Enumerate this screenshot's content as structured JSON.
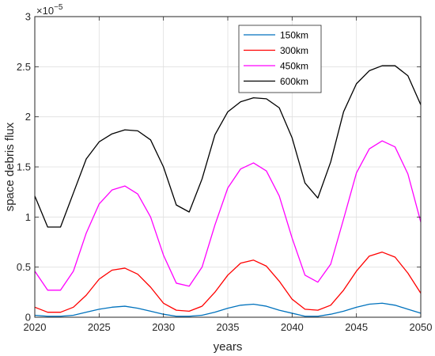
{
  "chart_data": {
    "type": "line",
    "xlabel": "years",
    "ylabel": "space debris flux",
    "y_exponent_label": "×10",
    "y_exponent_power": "−5",
    "xlim": [
      2020,
      2050
    ],
    "ylim": [
      0,
      3
    ],
    "xticks": [
      2020,
      2025,
      2030,
      2035,
      2040,
      2045,
      2050
    ],
    "xtick_labels": [
      "2020",
      "2025",
      "2030",
      "2035",
      "2040",
      "2045",
      "2050"
    ],
    "yticks": [
      0,
      0.5,
      1,
      1.5,
      2,
      2.5,
      3
    ],
    "ytick_labels": [
      "0",
      "0.5",
      "1",
      "1.5",
      "2",
      "2.5",
      "3"
    ],
    "grid": true,
    "legend_position": "top-right",
    "x": [
      2020,
      2021,
      2022,
      2023,
      2024,
      2025,
      2026,
      2027,
      2028,
      2029,
      2030,
      2031,
      2032,
      2033,
      2034,
      2035,
      2036,
      2037,
      2038,
      2039,
      2040,
      2041,
      2042,
      2043,
      2044,
      2045,
      2046,
      2047,
      2048,
      2049,
      2050
    ],
    "series": [
      {
        "name": "150km",
        "color": "#0072BD",
        "values": [
          0.02,
          0.01,
          0.01,
          0.02,
          0.05,
          0.08,
          0.1,
          0.11,
          0.09,
          0.06,
          0.03,
          0.01,
          0.01,
          0.02,
          0.05,
          0.09,
          0.12,
          0.13,
          0.11,
          0.07,
          0.04,
          0.01,
          0.01,
          0.03,
          0.06,
          0.1,
          0.13,
          0.14,
          0.12,
          0.08,
          0.04
        ]
      },
      {
        "name": "300km",
        "color": "#FF0000",
        "values": [
          0.1,
          0.05,
          0.05,
          0.1,
          0.22,
          0.38,
          0.47,
          0.49,
          0.43,
          0.3,
          0.14,
          0.07,
          0.06,
          0.11,
          0.25,
          0.42,
          0.54,
          0.57,
          0.51,
          0.36,
          0.18,
          0.08,
          0.07,
          0.12,
          0.27,
          0.46,
          0.61,
          0.65,
          0.6,
          0.44,
          0.24
        ]
      },
      {
        "name": "450km",
        "color": "#FF00FF",
        "values": [
          0.46,
          0.27,
          0.27,
          0.46,
          0.84,
          1.13,
          1.27,
          1.31,
          1.23,
          1.0,
          0.62,
          0.34,
          0.31,
          0.5,
          0.92,
          1.29,
          1.48,
          1.54,
          1.46,
          1.21,
          0.79,
          0.42,
          0.35,
          0.53,
          0.98,
          1.44,
          1.68,
          1.76,
          1.7,
          1.43,
          0.95
        ]
      },
      {
        "name": "600km",
        "color": "#000000",
        "values": [
          1.21,
          0.9,
          0.9,
          1.24,
          1.58,
          1.75,
          1.83,
          1.87,
          1.86,
          1.77,
          1.5,
          1.12,
          1.05,
          1.38,
          1.82,
          2.05,
          2.15,
          2.19,
          2.18,
          2.09,
          1.79,
          1.34,
          1.19,
          1.55,
          2.05,
          2.33,
          2.46,
          2.51,
          2.51,
          2.41,
          2.12
        ]
      }
    ]
  }
}
